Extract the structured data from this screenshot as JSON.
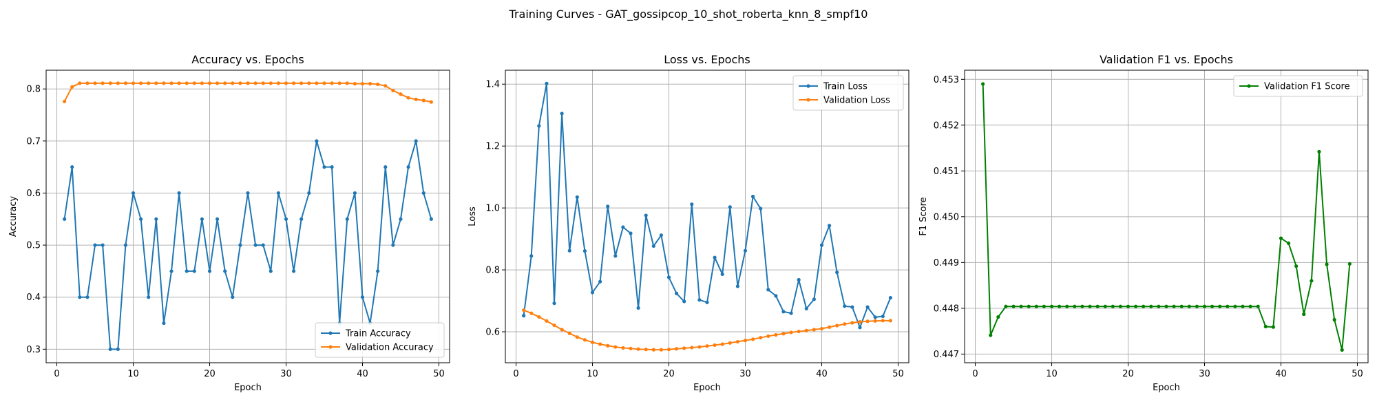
{
  "figure": {
    "suptitle": "Training Curves - GAT_gossipcop_10_shot_roberta_knn_8_smpf10"
  },
  "colors": {
    "blue": "#1f77b4",
    "orange": "#ff7f0e",
    "green": "#008000",
    "grid": "#b0b0b0"
  },
  "chart_data": [
    {
      "type": "line",
      "title": "Accuracy vs. Epochs",
      "xlabel": "Epoch",
      "ylabel": "Accuracy",
      "grid": true,
      "legend": "lower-right",
      "xlim": [
        -1.4,
        51.4
      ],
      "ylim": [
        0.274,
        0.836
      ],
      "xticks": [
        0,
        10,
        20,
        30,
        40,
        50
      ],
      "yticks": [
        0.3,
        0.4,
        0.5,
        0.6,
        0.7,
        0.8
      ],
      "yfmt": 1,
      "x": [
        1,
        2,
        3,
        4,
        5,
        6,
        7,
        8,
        9,
        10,
        11,
        12,
        13,
        14,
        15,
        16,
        17,
        18,
        19,
        20,
        21,
        22,
        23,
        24,
        25,
        26,
        27,
        28,
        29,
        30,
        31,
        32,
        33,
        34,
        35,
        36,
        37,
        38,
        39,
        40,
        41,
        42,
        43,
        44,
        45,
        46,
        47,
        48,
        49
      ],
      "series": [
        {
          "name": "Train Accuracy",
          "color": "#1f77b4",
          "values": [
            0.55,
            0.65,
            0.4,
            0.4,
            0.5,
            0.5,
            0.3,
            0.3,
            0.5,
            0.6,
            0.55,
            0.4,
            0.55,
            0.35,
            0.45,
            0.6,
            0.45,
            0.45,
            0.55,
            0.45,
            0.55,
            0.45,
            0.4,
            0.5,
            0.6,
            0.5,
            0.5,
            0.45,
            0.6,
            0.55,
            0.45,
            0.55,
            0.6,
            0.7,
            0.65,
            0.65,
            0.35,
            0.55,
            0.6,
            0.4,
            0.35,
            0.45,
            0.65,
            0.5,
            0.55,
            0.65,
            0.7,
            0.6,
            0.55
          ]
        },
        {
          "name": "Validation Accuracy",
          "color": "#ff7f0e",
          "values": [
            0.776,
            0.804,
            0.811,
            0.811,
            0.811,
            0.811,
            0.811,
            0.811,
            0.811,
            0.811,
            0.811,
            0.811,
            0.811,
            0.811,
            0.811,
            0.811,
            0.811,
            0.811,
            0.811,
            0.811,
            0.811,
            0.811,
            0.811,
            0.811,
            0.811,
            0.811,
            0.811,
            0.811,
            0.811,
            0.811,
            0.811,
            0.811,
            0.811,
            0.811,
            0.811,
            0.811,
            0.811,
            0.811,
            0.81,
            0.81,
            0.81,
            0.809,
            0.806,
            0.797,
            0.79,
            0.783,
            0.78,
            0.778,
            0.775
          ]
        }
      ]
    },
    {
      "type": "line",
      "title": "Loss vs. Epochs",
      "xlabel": "Epoch",
      "ylabel": "Loss",
      "grid": true,
      "legend": "top-right",
      "xlim": [
        -1.4,
        51.4
      ],
      "ylim": [
        0.5,
        1.445
      ],
      "xticks": [
        0,
        10,
        20,
        30,
        40,
        50
      ],
      "yticks": [
        0.6,
        0.8,
        1.0,
        1.2,
        1.4
      ],
      "yfmt": 1,
      "x": [
        1,
        2,
        3,
        4,
        5,
        6,
        7,
        8,
        9,
        10,
        11,
        12,
        13,
        14,
        15,
        16,
        17,
        18,
        19,
        20,
        21,
        22,
        23,
        24,
        25,
        26,
        27,
        28,
        29,
        30,
        31,
        32,
        33,
        34,
        35,
        36,
        37,
        38,
        39,
        40,
        41,
        42,
        43,
        44,
        45,
        46,
        47,
        48,
        49
      ],
      "series": [
        {
          "name": "Train Loss",
          "color": "#1f77b4",
          "values": [
            0.652,
            0.845,
            1.265,
            1.402,
            0.692,
            1.305,
            0.862,
            1.035,
            0.861,
            0.727,
            0.762,
            1.005,
            0.845,
            0.938,
            0.918,
            0.677,
            0.976,
            0.877,
            0.912,
            0.776,
            0.724,
            0.698,
            1.012,
            0.703,
            0.695,
            0.84,
            0.786,
            1.003,
            0.747,
            0.862,
            1.037,
            0.998,
            0.736,
            0.716,
            0.665,
            0.66,
            0.768,
            0.675,
            0.705,
            0.88,
            0.943,
            0.792,
            0.683,
            0.68,
            0.614,
            0.68,
            0.647,
            0.65,
            0.71
          ]
        },
        {
          "name": "Validation Loss",
          "color": "#ff7f0e",
          "values": [
            0.67,
            0.66,
            0.648,
            0.635,
            0.621,
            0.607,
            0.595,
            0.583,
            0.574,
            0.566,
            0.56,
            0.555,
            0.551,
            0.548,
            0.546,
            0.544,
            0.543,
            0.542,
            0.542,
            0.543,
            0.545,
            0.547,
            0.549,
            0.551,
            0.554,
            0.557,
            0.56,
            0.564,
            0.568,
            0.572,
            0.576,
            0.581,
            0.586,
            0.59,
            0.594,
            0.598,
            0.601,
            0.604,
            0.607,
            0.61,
            0.615,
            0.62,
            0.625,
            0.629,
            0.632,
            0.634,
            0.635,
            0.636,
            0.636
          ]
        }
      ]
    },
    {
      "type": "line",
      "title": "Validation F1 vs. Epochs",
      "xlabel": "Epoch",
      "ylabel": "F1 Score",
      "grid": true,
      "legend": "top-right",
      "xlim": [
        -1.4,
        51.4
      ],
      "ylim": [
        0.44681,
        0.4532
      ],
      "xticks": [
        0,
        10,
        20,
        30,
        40,
        50
      ],
      "yticks": [
        0.447,
        0.448,
        0.449,
        0.45,
        0.451,
        0.452,
        0.453
      ],
      "yfmt": 3,
      "x": [
        1,
        2,
        3,
        4,
        5,
        6,
        7,
        8,
        9,
        10,
        11,
        12,
        13,
        14,
        15,
        16,
        17,
        18,
        19,
        20,
        21,
        22,
        23,
        24,
        25,
        26,
        27,
        28,
        29,
        30,
        31,
        32,
        33,
        34,
        35,
        36,
        37,
        38,
        39,
        40,
        41,
        42,
        43,
        44,
        45,
        46,
        47,
        48,
        49
      ],
      "series": [
        {
          "name": "Validation F1 Score",
          "color": "#008000",
          "values": [
            0.4529,
            0.44741,
            0.44781,
            0.44804,
            0.44804,
            0.44804,
            0.44804,
            0.44804,
            0.44804,
            0.44804,
            0.44804,
            0.44804,
            0.44804,
            0.44804,
            0.44804,
            0.44804,
            0.44804,
            0.44804,
            0.44804,
            0.44804,
            0.44804,
            0.44804,
            0.44804,
            0.44804,
            0.44804,
            0.44804,
            0.44804,
            0.44804,
            0.44804,
            0.44804,
            0.44804,
            0.44804,
            0.44804,
            0.44804,
            0.44804,
            0.44804,
            0.44804,
            0.4476,
            0.44759,
            0.44953,
            0.44942,
            0.44892,
            0.44787,
            0.4486,
            0.45142,
            0.44896,
            0.44775,
            0.44709,
            0.44897
          ]
        }
      ]
    }
  ]
}
